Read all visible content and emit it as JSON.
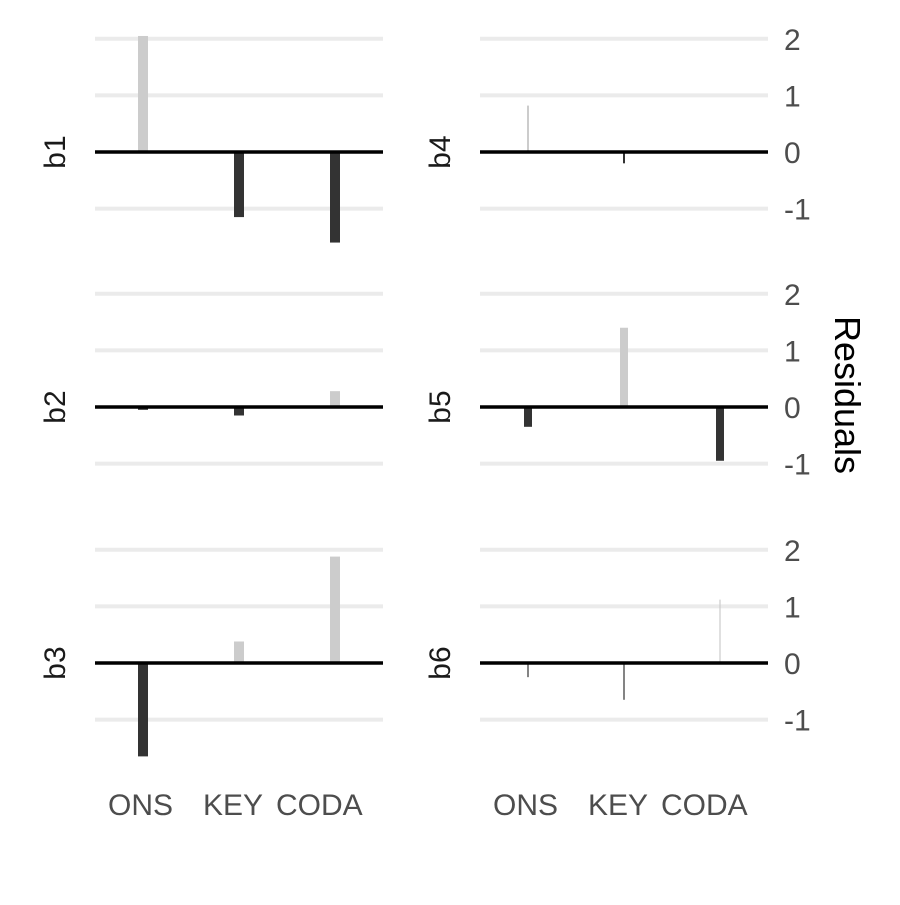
{
  "chart_data": {
    "type": "bar",
    "layout": "faceted 3 rows x 2 columns",
    "categories": [
      "ONS",
      "KEY",
      "CODA"
    ],
    "ylabel": "Residuals",
    "ylim": [
      -1.6,
      2.2
    ],
    "yticks": [
      -1,
      0,
      1,
      2
    ],
    "grid": true,
    "legend": "none",
    "colors": {
      "positive": "#cccccc",
      "negative": "#333333",
      "zero_line": "#000000",
      "grid": "#ebebeb",
      "text": "#4d4d4d"
    },
    "note": "bar width varies per facet",
    "facets": [
      {
        "label": "b1",
        "values": [
          2.05,
          -1.15,
          -1.6
        ],
        "bar_width": "wide"
      },
      {
        "label": "b2",
        "values": [
          -0.05,
          -0.15,
          0.28
        ],
        "bar_width": "wide"
      },
      {
        "label": "b3",
        "values": [
          -1.65,
          0.38,
          1.88
        ],
        "bar_width": "wide"
      },
      {
        "label": "b4",
        "values": [
          0.82,
          -0.2,
          0.0
        ],
        "bar_width": "thin"
      },
      {
        "label": "b5",
        "values": [
          -0.35,
          1.4,
          -0.95
        ],
        "bar_width": "medium"
      },
      {
        "label": "b6",
        "values": [
          -0.25,
          -0.65,
          1.12
        ],
        "bar_width": "hairline"
      }
    ]
  }
}
